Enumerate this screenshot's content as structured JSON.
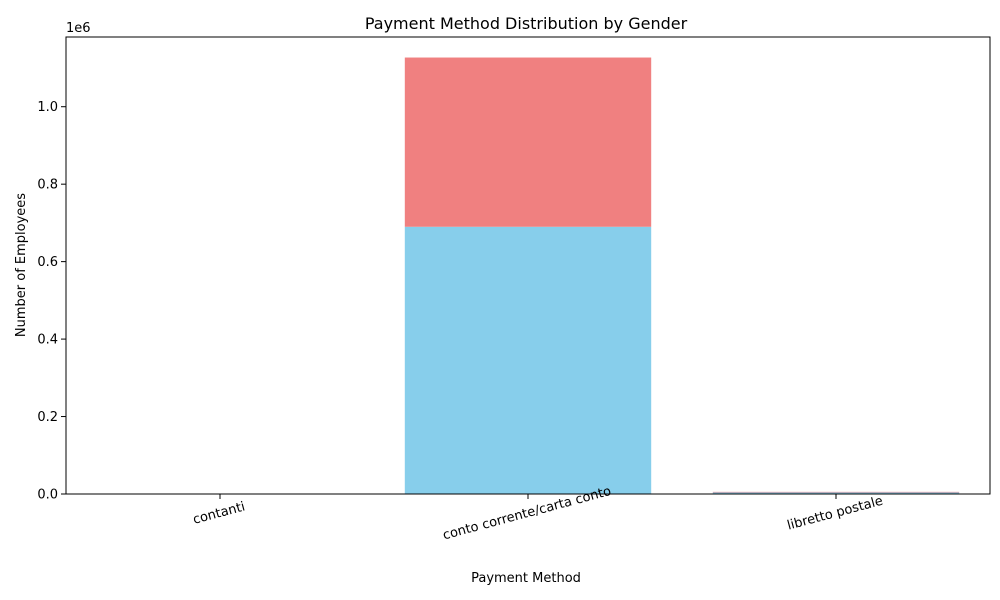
{
  "chart_data": {
    "type": "bar",
    "stacked": true,
    "title": "Payment Method Distribution by Gender",
    "xlabel": "Payment Method",
    "ylabel": "Number of Employees",
    "y_offset_label": "1e6",
    "categories": [
      "contanti",
      "conto corrente/carta conto",
      "libretto postale"
    ],
    "ylim": [
      0,
      1180000
    ],
    "y_ticks": [
      0,
      200000,
      400000,
      600000,
      800000,
      1000000
    ],
    "y_tick_labels": [
      "0.0",
      "0.2",
      "0.4",
      "0.6",
      "0.8",
      "1.0"
    ],
    "series": [
      {
        "values": [
          500,
          690000,
          4000
        ],
        "color": "#87CEEB"
      },
      {
        "values": [
          300,
          437000,
          1500
        ],
        "color": "#F08080"
      }
    ],
    "grid": false,
    "legend": "none"
  }
}
